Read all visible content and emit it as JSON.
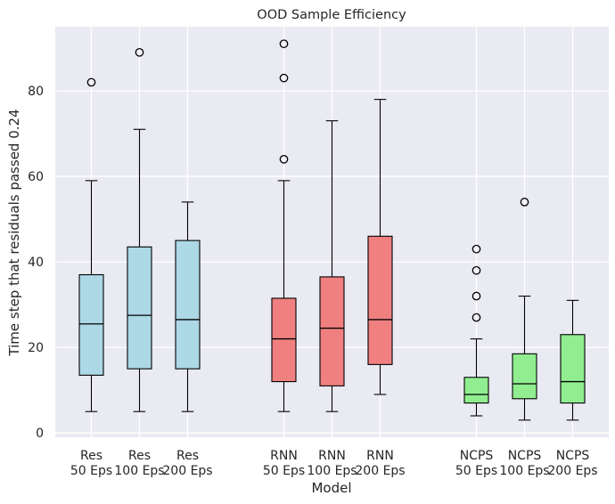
{
  "chart_data": {
    "type": "box",
    "title": "OOD Sample Efficiency",
    "xlabel": "Model",
    "ylabel": "Time step that residuals passed 0.24",
    "ylim": [
      -1,
      95
    ],
    "yticks": [
      0,
      20,
      40,
      60,
      80
    ],
    "grid": true,
    "groups": [
      {
        "color": "#add8e6",
        "boxes": [
          {
            "label_line1": "Res",
            "label_line2": "50 Eps",
            "whisker_low": 5,
            "q1": 13.5,
            "median": 25.5,
            "q3": 37,
            "whisker_high": 59,
            "outliers": [
              82
            ]
          },
          {
            "label_line1": "Res",
            "label_line2": "100 Eps",
            "whisker_low": 5,
            "q1": 15,
            "median": 27.5,
            "q3": 43.5,
            "whisker_high": 71,
            "outliers": [
              89
            ]
          },
          {
            "label_line1": "Res",
            "label_line2": "200 Eps",
            "whisker_low": 5,
            "q1": 15,
            "median": 26.5,
            "q3": 45,
            "whisker_high": 54,
            "outliers": []
          }
        ]
      },
      {
        "color": "#f08080",
        "boxes": [
          {
            "label_line1": "RNN",
            "label_line2": "50 Eps",
            "whisker_low": 5,
            "q1": 12,
            "median": 22,
            "q3": 31.5,
            "whisker_high": 59,
            "outliers": [
              64,
              83,
              91
            ]
          },
          {
            "label_line1": "RNN",
            "label_line2": "100 Eps",
            "whisker_low": 5,
            "q1": 11,
            "median": 24.5,
            "q3": 36.5,
            "whisker_high": 73,
            "outliers": []
          },
          {
            "label_line1": "RNN",
            "label_line2": "200 Eps",
            "whisker_low": 9,
            "q1": 16,
            "median": 26.5,
            "q3": 46,
            "whisker_high": 78,
            "outliers": []
          }
        ]
      },
      {
        "color": "#90ee90",
        "boxes": [
          {
            "label_line1": "NCPS",
            "label_line2": "50 Eps",
            "whisker_low": 4,
            "q1": 7,
            "median": 9,
            "q3": 13,
            "whisker_high": 22,
            "outliers": [
              27,
              32,
              38,
              43
            ]
          },
          {
            "label_line1": "NCPS",
            "label_line2": "100 Eps",
            "whisker_low": 3,
            "q1": 8,
            "median": 11.5,
            "q3": 18.5,
            "whisker_high": 32,
            "outliers": [
              54
            ]
          },
          {
            "label_line1": "NCPS",
            "label_line2": "200 Eps",
            "whisker_low": 3,
            "q1": 7,
            "median": 12,
            "q3": 23,
            "whisker_high": 31,
            "outliers": []
          }
        ]
      }
    ]
  }
}
